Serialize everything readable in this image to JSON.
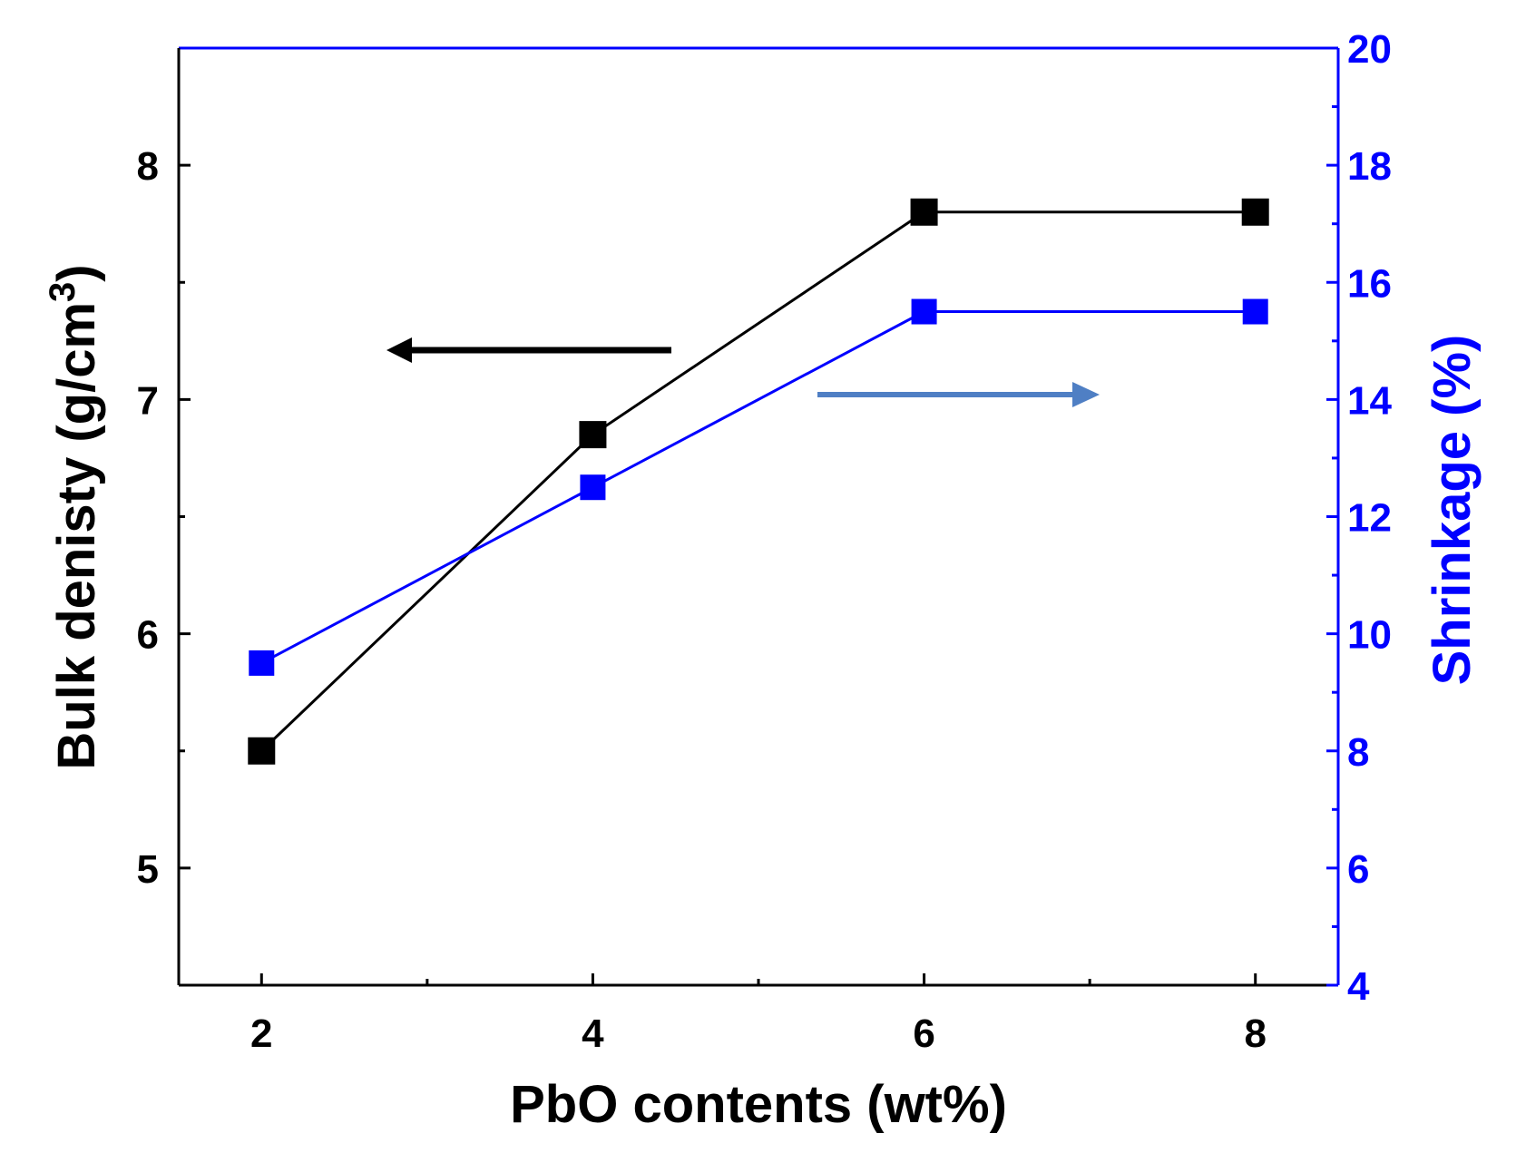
{
  "chart_data": {
    "type": "line",
    "title": "",
    "xlabel": "PbO contents (wt%)",
    "ylabel_left": "Bulk denisty (g/cm",
    "ylabel_left_superscript": "3",
    "ylabel_left_close": ")",
    "ylabel_right": "Shrinkage (%)",
    "xlim": [
      1.5,
      8.5
    ],
    "ylim_left": [
      4.5,
      8.5
    ],
    "ylim_right": [
      4,
      20
    ],
    "x_ticks": [
      2,
      4,
      6,
      8
    ],
    "x_tick_labels": [
      "2",
      "4",
      "6",
      "8"
    ],
    "x_minor_ticks": [
      3,
      5,
      7
    ],
    "y_left_ticks": [
      5,
      6,
      7,
      8
    ],
    "y_left_tick_labels": [
      "5",
      "6",
      "7",
      "8"
    ],
    "y_left_minor_ticks": [
      5.5,
      6.5,
      7.5
    ],
    "y_right_ticks": [
      4,
      6,
      8,
      10,
      12,
      14,
      16,
      18,
      20
    ],
    "y_right_tick_labels": [
      "4",
      "6",
      "8",
      "10",
      "12",
      "14",
      "16",
      "18",
      "20"
    ],
    "y_right_minor_ticks": [
      5,
      7,
      9,
      11,
      13,
      15,
      17,
      19
    ],
    "x": [
      2,
      4,
      6,
      8
    ],
    "series": [
      {
        "name": "Bulk density",
        "axis": "left",
        "color": "#000000",
        "values": [
          5.5,
          6.85,
          7.8,
          7.8
        ]
      },
      {
        "name": "Shrinkage",
        "axis": "right",
        "color": "#0000ff",
        "values": [
          9.5,
          12.5,
          15.5,
          15.5
        ]
      }
    ],
    "annotations": [
      {
        "type": "arrow",
        "direction": "left",
        "color": "#000000",
        "points_to": "left axis"
      },
      {
        "type": "arrow",
        "direction": "right",
        "color": "#4f7fc4",
        "points_to": "right axis"
      }
    ],
    "grid": false,
    "colors": {
      "left_axis": "#000000",
      "right_axis": "#0000ff"
    }
  }
}
